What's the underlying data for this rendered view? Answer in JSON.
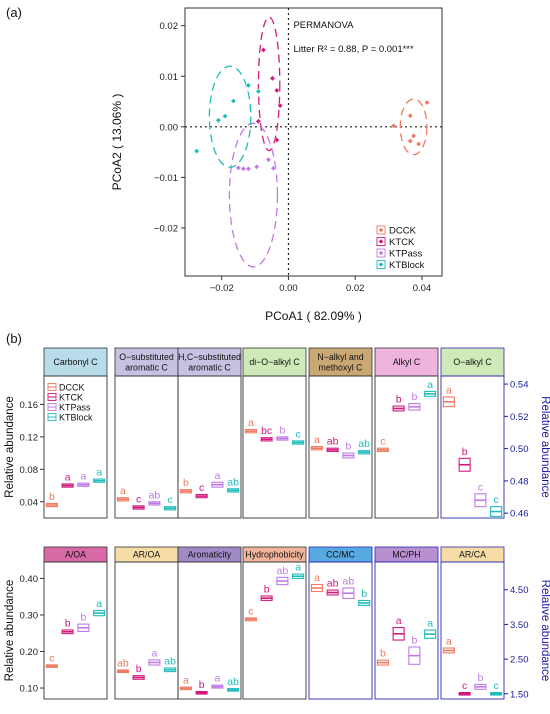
{
  "colors": {
    "DCCK": "#f07a62",
    "KTCK": "#d11a7c",
    "KTPass": "#c07ae8",
    "KTBlock": "#20bcbc",
    "right_axis": "#1a1aa0"
  },
  "panel_a": {
    "label": "(a)",
    "annotation_title": "PERMANOVA",
    "annotation_stat": "Litter  R² = 0.88, P = 0.001***",
    "chart_data": {
      "type": "scatter",
      "xlabel": "PCoA1 ( 82.09% )",
      "ylabel": "PCoA2 ( 13.06% )",
      "xlim": [
        -0.031,
        0.046
      ],
      "ylim": [
        -0.0295,
        0.0235
      ],
      "xticks": [
        -0.02,
        0,
        0.02,
        0.04
      ],
      "xtick_labels": [
        "−0.02",
        "0.00",
        "0.02",
        "0.04"
      ],
      "yticks": [
        -0.02,
        -0.01,
        0,
        0.01,
        0.02
      ],
      "ytick_labels": [
        "−0.02",
        "−0.01",
        "0.00",
        "0.01",
        "0.02"
      ],
      "legend": "bottom-right",
      "series": [
        {
          "name": "DCCK",
          "points": [
            [
              0.0315,
              0.0002
            ],
            [
              0.0365,
              0.0022
            ],
            [
              0.0365,
              -0.0028
            ],
            [
              0.0375,
              -0.0018
            ],
            [
              0.039,
              -0.0034
            ],
            [
              0.0415,
              0.0048
            ]
          ]
        },
        {
          "name": "KTCK",
          "points": [
            [
              -0.0075,
              0.0152
            ],
            [
              -0.0048,
              0.0096
            ],
            [
              -0.0035,
              0.0072
            ],
            [
              -0.0025,
              0.0042
            ],
            [
              -0.009,
              0.0011
            ],
            [
              -0.0035,
              -0.0026
            ]
          ]
        },
        {
          "name": "KTPass",
          "points": [
            [
              -0.015,
              -0.0081
            ],
            [
              -0.0135,
              -0.0083
            ],
            [
              -0.012,
              -0.0083
            ],
            [
              -0.0095,
              -0.0079
            ],
            [
              -0.006,
              -0.0065
            ],
            [
              -0.0045,
              -0.0082
            ]
          ]
        },
        {
          "name": "KTBlock",
          "points": [
            [
              -0.0275,
              -0.0048
            ],
            [
              -0.021,
              0.0013
            ],
            [
              -0.019,
              0.0021
            ],
            [
              -0.0165,
              0.0051
            ],
            [
              -0.012,
              0.0082
            ],
            [
              -0.009,
              0.007
            ]
          ]
        }
      ],
      "ellipses": [
        {
          "series": "DCCK",
          "cx": 0.0375,
          "cy": 0.0,
          "rx": 0.004,
          "ry": 0.0055
        },
        {
          "series": "KTCK",
          "cx": -0.0058,
          "cy": 0.0085,
          "rx": 0.0032,
          "ry": 0.0132
        },
        {
          "series": "KTPass",
          "cx": -0.0105,
          "cy": -0.0135,
          "rx": 0.0072,
          "ry": 0.0142
        },
        {
          "series": "KTBlock",
          "cx": -0.0175,
          "cy": 0.002,
          "rx": 0.0062,
          "ry": 0.01
        }
      ]
    }
  },
  "panel_b": {
    "label": "(b)",
    "groups": [
      "DCCK",
      "KTCK",
      "KTPass",
      "KTBlock"
    ],
    "chart_data": [
      {
        "type": "bar",
        "ylabel_left": "Relative abundance",
        "ylabel_right": "Relative abundance",
        "left_yticks": [
          0.04,
          0.08,
          0.12,
          0.16
        ],
        "left_ytick_labels": [
          "0.04",
          "0.08",
          "0.12",
          "0.16"
        ],
        "left_ylim": [
          0.02,
          0.195
        ],
        "right_yticks": [
          0.46,
          0.48,
          0.5,
          0.52,
          0.54
        ],
        "right_ytick_labels": [
          "0.46",
          "0.48",
          "0.50",
          "0.52",
          "0.54"
        ],
        "right_ylim": [
          0.457,
          0.545
        ],
        "legend": "top-left",
        "facets": [
          {
            "label": "Carbonyl C",
            "header_color": "#b8dcea",
            "axis": "left",
            "boxes": [
              [
                0.034,
                0.036,
                0.038
              ],
              [
                0.058,
                0.06,
                0.062
              ],
              [
                0.059,
                0.061,
                0.063
              ],
              [
                0.064,
                0.066,
                0.068
              ]
            ],
            "letters": [
              "b",
              "a",
              "a",
              "a"
            ]
          },
          {
            "label": "O−substituted aromatic C",
            "header_color": "#c6c2e2",
            "axis": "left",
            "boxes": [
              [
                0.041,
                0.043,
                0.045
              ],
              [
                0.031,
                0.033,
                0.035
              ],
              [
                0.036,
                0.038,
                0.04
              ],
              [
                0.03,
                0.032,
                0.034
              ]
            ],
            "letters": [
              "a",
              "c",
              "ab",
              "c"
            ]
          },
          {
            "label": "H,C−substituted aromatic C",
            "header_color": "#c6c2e2",
            "axis": "left",
            "boxes": [
              [
                0.051,
                0.053,
                0.055
              ],
              [
                0.045,
                0.047,
                0.049
              ],
              [
                0.058,
                0.061,
                0.064
              ],
              [
                0.052,
                0.054,
                0.056
              ]
            ],
            "letters": [
              "b",
              "c",
              "a",
              "ab"
            ]
          },
          {
            "label": "di−O−alkyl C",
            "header_color": "#cfeab8",
            "axis": "left",
            "boxes": [
              [
                0.125,
                0.127,
                0.129
              ],
              [
                0.115,
                0.117,
                0.119
              ],
              [
                0.116,
                0.118,
                0.12
              ],
              [
                0.111,
                0.113,
                0.115
              ]
            ],
            "letters": [
              "a",
              "bc",
              "b",
              "c"
            ]
          },
          {
            "label": "N−alkyl and methoxyl C",
            "header_color": "#caa874",
            "axis": "left",
            "boxes": [
              [
                0.104,
                0.106,
                0.108
              ],
              [
                0.102,
                0.104,
                0.106
              ],
              [
                0.094,
                0.097,
                0.1
              ],
              [
                0.099,
                0.101,
                0.103
              ]
            ],
            "letters": [
              "a",
              "ab",
              "b",
              "ab"
            ]
          },
          {
            "label": "Alkyl C",
            "header_color": "#eeb4de",
            "axis": "left",
            "boxes": [
              [
                0.102,
                0.104,
                0.106
              ],
              [
                0.152,
                0.155,
                0.158
              ],
              [
                0.153,
                0.157,
                0.161
              ],
              [
                0.17,
                0.173,
                0.176
              ]
            ],
            "letters": [
              "c",
              "b",
              "b",
              "a"
            ]
          },
          {
            "label": "O−alkyl C",
            "header_color": "#cfeab8",
            "axis": "right",
            "boxes": [
              [
                0.526,
                0.529,
                0.532
              ],
              [
                0.486,
                0.49,
                0.494
              ],
              [
                0.464,
                0.468,
                0.472
              ],
              [
                0.458,
                0.461,
                0.464
              ]
            ],
            "letters": [
              "a",
              "b",
              "c",
              "c"
            ]
          }
        ]
      },
      {
        "type": "bar",
        "ylabel_left": "Relative abundance",
        "ylabel_right": "Relative abundance",
        "left_yticks": [
          0.1,
          0.2,
          0.3,
          0.4
        ],
        "left_ytick_labels": [
          "0.10",
          "0.20",
          "0.30",
          "0.40"
        ],
        "left_ylim": [
          0.07,
          0.445
        ],
        "right_yticks": [
          1.5,
          2.5,
          3.5,
          4.5
        ],
        "right_ytick_labels": [
          "1.50",
          "2.50",
          "3.50",
          "4.50"
        ],
        "right_ylim": [
          1.35,
          5.3
        ],
        "facets": [
          {
            "label": "A/OA",
            "header_color": "#d86aa8",
            "axis": "left",
            "boxes": [
              [
                0.157,
                0.16,
                0.163
              ],
              [
                0.249,
                0.254,
                0.259
              ],
              [
                0.255,
                0.265,
                0.275
              ],
              [
                0.298,
                0.305,
                0.312
              ]
            ],
            "letters": [
              "c",
              "b",
              "b",
              "a"
            ]
          },
          {
            "label": "AR/OA",
            "header_color": "#f8dca6",
            "axis": "left",
            "boxes": [
              [
                0.143,
                0.146,
                0.149
              ],
              [
                0.124,
                0.129,
                0.134
              ],
              [
                0.163,
                0.17,
                0.177
              ],
              [
                0.145,
                0.15,
                0.155
              ]
            ],
            "letters": [
              "ab",
              "b",
              "a",
              "ab"
            ]
          },
          {
            "label": "Aromaticity",
            "header_color": "#a08ac6",
            "axis": "left",
            "boxes": [
              [
                0.097,
                0.099,
                0.101
              ],
              [
                0.084,
                0.087,
                0.09
              ],
              [
                0.1,
                0.104,
                0.108
              ],
              [
                0.092,
                0.095,
                0.098
              ]
            ],
            "letters": [
              "a",
              "b",
              "a",
              "ab"
            ]
          },
          {
            "label": "Hydrophobicity",
            "header_color": "#f3b49c",
            "axis": "left",
            "boxes": [
              [
                0.284,
                0.288,
                0.292
              ],
              [
                0.34,
                0.346,
                0.352
              ],
              [
                0.383,
                0.393,
                0.403
              ],
              [
                0.4,
                0.406,
                0.412
              ]
            ],
            "letters": [
              "c",
              "b",
              "ab",
              "a"
            ]
          },
          {
            "label": "CC/MC",
            "header_color": "#58a8e2",
            "axis": "right",
            "boxes": [
              [
                4.45,
                4.55,
                4.65
              ],
              [
                4.35,
                4.42,
                4.49
              ],
              [
                4.25,
                4.4,
                4.55
              ],
              [
                4.05,
                4.12,
                4.19
              ]
            ],
            "letters": [
              "a",
              "ab",
              "ab",
              "b"
            ]
          },
          {
            "label": "MC/PH",
            "header_color": "#b890d0",
            "axis": "right",
            "boxes": [
              [
                2.33,
                2.4,
                2.47
              ],
              [
                3.05,
                3.23,
                3.41
              ],
              [
                2.35,
                2.6,
                2.85
              ],
              [
                3.1,
                3.22,
                3.34
              ]
            ],
            "letters": [
              "b",
              "a",
              "b",
              "a"
            ]
          },
          {
            "label": "AR/CA",
            "header_color": "#f8dca6",
            "axis": "right",
            "boxes": [
              [
                2.68,
                2.75,
                2.82
              ],
              [
                1.47,
                1.5,
                1.53
              ],
              [
                1.63,
                1.7,
                1.77
              ],
              [
                1.47,
                1.5,
                1.53
              ]
            ],
            "letters": [
              "a",
              "c",
              "b",
              "c"
            ]
          }
        ]
      }
    ]
  }
}
